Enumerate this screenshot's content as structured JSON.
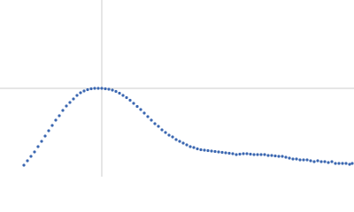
{
  "chart_data": {
    "type": "scatter",
    "color": "#3b67b1",
    "xlim": [
      0,
      400
    ],
    "ylim": [
      0,
      200
    ],
    "reference_lines": {
      "x": 115,
      "y": 100,
      "color": "#cccccc"
    },
    "x": [
      27,
      31,
      35,
      39,
      43,
      47,
      51,
      55,
      59,
      63,
      67,
      71,
      75,
      79,
      83,
      87,
      91,
      95,
      99,
      103,
      107,
      111,
      115,
      119,
      123,
      127,
      131,
      135,
      139,
      143,
      147,
      151,
      155,
      159,
      163,
      167,
      171,
      175,
      179,
      183,
      187,
      191,
      195,
      199,
      203,
      207,
      211,
      215,
      219,
      223,
      227,
      231,
      235,
      239,
      243,
      247,
      251,
      255,
      259,
      263,
      267,
      271,
      275,
      279,
      283,
      287,
      291,
      295,
      299,
      303,
      307,
      311,
      315,
      319,
      323,
      327,
      331,
      335,
      339,
      343,
      347,
      351,
      355,
      359,
      363,
      367,
      371,
      375,
      379,
      383,
      387,
      391,
      395,
      398
    ],
    "y": [
      13,
      18,
      23,
      28,
      34,
      40,
      46,
      52,
      58,
      64,
      69,
      75,
      80,
      84,
      88,
      92,
      95,
      97,
      98.5,
      99.5,
      100,
      100,
      100,
      99.5,
      99,
      98,
      96.5,
      94.5,
      92,
      89.5,
      86.5,
      83,
      79.5,
      76,
      72,
      68,
      64,
      60,
      57,
      53,
      50,
      47,
      45,
      42,
      40,
      38,
      36,
      34,
      33,
      31.5,
      30.5,
      30,
      29.5,
      29,
      28.5,
      28,
      27.5,
      27,
      26.5,
      26,
      25,
      25.5,
      26,
      26,
      25.5,
      25,
      25,
      25,
      25,
      24,
      24,
      23.5,
      23,
      23,
      22,
      21,
      20,
      20,
      19,
      19,
      19,
      18,
      17,
      18,
      17,
      17,
      16,
      17,
      15,
      15,
      15,
      15,
      14,
      15
    ]
  }
}
